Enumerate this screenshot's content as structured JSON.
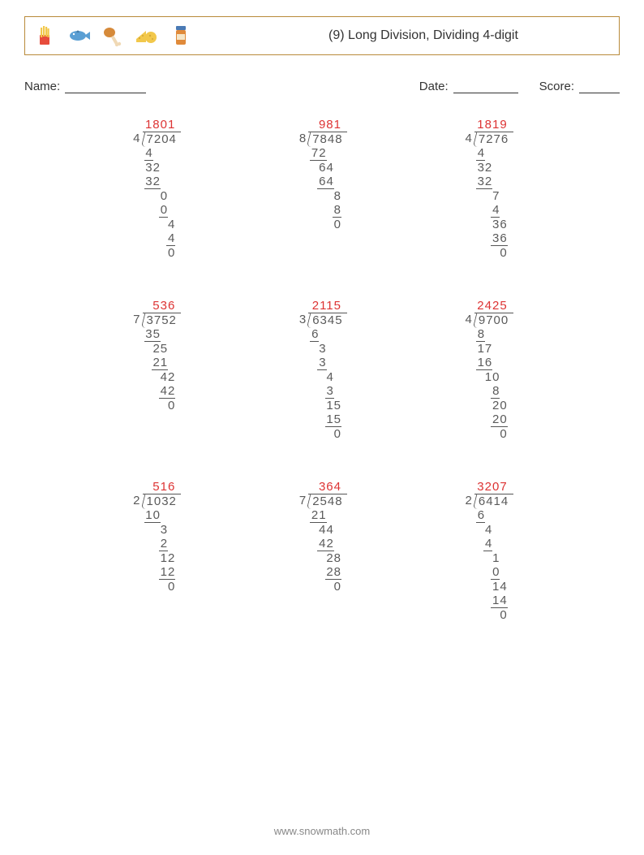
{
  "title": "(9) Long Division, Dividing 4-digit",
  "labels": {
    "name": "Name:",
    "date": "Date:",
    "score": "Score:"
  },
  "footer": "www.snowmath.com",
  "colors": {
    "quotient": "#d33",
    "border": "#b88a3a",
    "line": "#555555",
    "text": "#5a5a5a"
  },
  "icons": [
    "fries-icon",
    "fish-icon",
    "drumstick-icon",
    "cheese-icon",
    "jar-icon"
  ],
  "problems": [
    {
      "divisor": "4",
      "dividend": "7204",
      "quotient": "1801",
      "steps": [
        {
          "txt": "4",
          "ul": true,
          "w": 1,
          "indent": 0
        },
        {
          "txt": "32",
          "ul": false,
          "w": 2,
          "indent": 0
        },
        {
          "txt": "32",
          "ul": true,
          "w": 2,
          "indent": 0
        },
        {
          "txt": "0",
          "ul": false,
          "w": 1,
          "indent": 2
        },
        {
          "txt": "0",
          "ul": true,
          "w": 1,
          "indent": 2
        },
        {
          "txt": "4",
          "ul": false,
          "w": 1,
          "indent": 3
        },
        {
          "txt": "4",
          "ul": true,
          "w": 1,
          "indent": 3
        },
        {
          "txt": "0",
          "ul": false,
          "w": 1,
          "indent": 3
        }
      ]
    },
    {
      "divisor": "8",
      "dividend": "7848",
      "quotient": "981",
      "steps": [
        {
          "txt": "72",
          "ul": true,
          "w": 2,
          "indent": 0
        },
        {
          "txt": "64",
          "ul": false,
          "w": 2,
          "indent": 1
        },
        {
          "txt": "64",
          "ul": true,
          "w": 2,
          "indent": 1
        },
        {
          "txt": "8",
          "ul": false,
          "w": 1,
          "indent": 3
        },
        {
          "txt": "8",
          "ul": true,
          "w": 1,
          "indent": 3
        },
        {
          "txt": "0",
          "ul": false,
          "w": 1,
          "indent": 3
        }
      ]
    },
    {
      "divisor": "4",
      "dividend": "7276",
      "quotient": "1819",
      "steps": [
        {
          "txt": "4",
          "ul": true,
          "w": 1,
          "indent": 0
        },
        {
          "txt": "32",
          "ul": false,
          "w": 2,
          "indent": 0
        },
        {
          "txt": "32",
          "ul": true,
          "w": 2,
          "indent": 0
        },
        {
          "txt": "7",
          "ul": false,
          "w": 1,
          "indent": 2
        },
        {
          "txt": "4",
          "ul": true,
          "w": 1,
          "indent": 2
        },
        {
          "txt": "36",
          "ul": false,
          "w": 2,
          "indent": 2
        },
        {
          "txt": "36",
          "ul": true,
          "w": 2,
          "indent": 2
        },
        {
          "txt": "0",
          "ul": false,
          "w": 1,
          "indent": 3
        }
      ]
    },
    {
      "divisor": "7",
      "dividend": "3752",
      "quotient": "536",
      "steps": [
        {
          "txt": "35",
          "ul": true,
          "w": 2,
          "indent": 0
        },
        {
          "txt": "25",
          "ul": false,
          "w": 2,
          "indent": 1
        },
        {
          "txt": "21",
          "ul": true,
          "w": 2,
          "indent": 1
        },
        {
          "txt": "42",
          "ul": false,
          "w": 2,
          "indent": 2
        },
        {
          "txt": "42",
          "ul": true,
          "w": 2,
          "indent": 2
        },
        {
          "txt": "0",
          "ul": false,
          "w": 1,
          "indent": 3
        }
      ]
    },
    {
      "divisor": "3",
      "dividend": "6345",
      "quotient": "2115",
      "steps": [
        {
          "txt": "6",
          "ul": true,
          "w": 1,
          "indent": 0
        },
        {
          "txt": "3",
          "ul": false,
          "w": 1,
          "indent": 1
        },
        {
          "txt": "3",
          "ul": true,
          "w": 1,
          "indent": 1
        },
        {
          "txt": "4",
          "ul": false,
          "w": 1,
          "indent": 2
        },
        {
          "txt": "3",
          "ul": true,
          "w": 1,
          "indent": 2
        },
        {
          "txt": "15",
          "ul": false,
          "w": 2,
          "indent": 2
        },
        {
          "txt": "15",
          "ul": true,
          "w": 2,
          "indent": 2
        },
        {
          "txt": "0",
          "ul": false,
          "w": 1,
          "indent": 3
        }
      ]
    },
    {
      "divisor": "4",
      "dividend": "9700",
      "quotient": "2425",
      "steps": [
        {
          "txt": "8",
          "ul": true,
          "w": 1,
          "indent": 0
        },
        {
          "txt": "17",
          "ul": false,
          "w": 2,
          "indent": 0
        },
        {
          "txt": "16",
          "ul": true,
          "w": 2,
          "indent": 0
        },
        {
          "txt": "10",
          "ul": false,
          "w": 2,
          "indent": 1
        },
        {
          "txt": "8",
          "ul": true,
          "w": 1,
          "indent": 2
        },
        {
          "txt": "20",
          "ul": false,
          "w": 2,
          "indent": 2
        },
        {
          "txt": "20",
          "ul": true,
          "w": 2,
          "indent": 2
        },
        {
          "txt": "0",
          "ul": false,
          "w": 1,
          "indent": 3
        }
      ]
    },
    {
      "divisor": "2",
      "dividend": "1032",
      "quotient": "516",
      "steps": [
        {
          "txt": "10",
          "ul": true,
          "w": 2,
          "indent": 0
        },
        {
          "txt": "3",
          "ul": false,
          "w": 1,
          "indent": 2
        },
        {
          "txt": "2",
          "ul": true,
          "w": 1,
          "indent": 2
        },
        {
          "txt": "12",
          "ul": false,
          "w": 2,
          "indent": 2
        },
        {
          "txt": "12",
          "ul": true,
          "w": 2,
          "indent": 2
        },
        {
          "txt": "0",
          "ul": false,
          "w": 1,
          "indent": 3
        }
      ]
    },
    {
      "divisor": "7",
      "dividend": "2548",
      "quotient": "364",
      "steps": [
        {
          "txt": "21",
          "ul": true,
          "w": 2,
          "indent": 0
        },
        {
          "txt": "44",
          "ul": false,
          "w": 2,
          "indent": 1
        },
        {
          "txt": "42",
          "ul": true,
          "w": 2,
          "indent": 1
        },
        {
          "txt": "28",
          "ul": false,
          "w": 2,
          "indent": 2
        },
        {
          "txt": "28",
          "ul": true,
          "w": 2,
          "indent": 2
        },
        {
          "txt": "0",
          "ul": false,
          "w": 1,
          "indent": 3
        }
      ]
    },
    {
      "divisor": "2",
      "dividend": "6414",
      "quotient": "3207",
      "steps": [
        {
          "txt": "6",
          "ul": true,
          "w": 1,
          "indent": 0
        },
        {
          "txt": "4",
          "ul": false,
          "w": 1,
          "indent": 1
        },
        {
          "txt": "4",
          "ul": true,
          "w": 1,
          "indent": 1
        },
        {
          "txt": "1",
          "ul": false,
          "w": 1,
          "indent": 2
        },
        {
          "txt": "0",
          "ul": true,
          "w": 1,
          "indent": 2
        },
        {
          "txt": "14",
          "ul": false,
          "w": 2,
          "indent": 2
        },
        {
          "txt": "14",
          "ul": true,
          "w": 2,
          "indent": 2
        },
        {
          "txt": "0",
          "ul": false,
          "w": 1,
          "indent": 3
        }
      ]
    }
  ]
}
